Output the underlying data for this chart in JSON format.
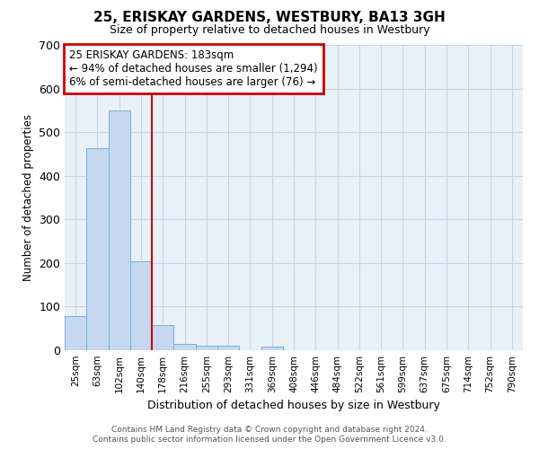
{
  "title": "25, ERISKAY GARDENS, WESTBURY, BA13 3GH",
  "subtitle": "Size of property relative to detached houses in Westbury",
  "xlabel": "Distribution of detached houses by size in Westbury",
  "ylabel": "Number of detached properties",
  "bar_labels": [
    "25sqm",
    "63sqm",
    "102sqm",
    "140sqm",
    "178sqm",
    "216sqm",
    "255sqm",
    "293sqm",
    "331sqm",
    "369sqm",
    "408sqm",
    "446sqm",
    "484sqm",
    "522sqm",
    "561sqm",
    "599sqm",
    "637sqm",
    "675sqm",
    "714sqm",
    "752sqm",
    "790sqm"
  ],
  "bar_heights": [
    78,
    463,
    550,
    204,
    57,
    14,
    10,
    10,
    0,
    8,
    0,
    0,
    0,
    0,
    0,
    0,
    0,
    0,
    0,
    0,
    0
  ],
  "bar_color": "#c5d8f0",
  "bar_edge_color": "#7aafd4",
  "vline_x": 4.0,
  "annotation_line1": "25 ERISKAY GARDENS: 183sqm",
  "annotation_line2": "← 94% of detached houses are smaller (1,294)",
  "annotation_line3": "6% of semi-detached houses are larger (76) →",
  "annotation_box_color": "#cc0000",
  "vline_color": "#cc0000",
  "ylim": [
    0,
    700
  ],
  "yticks": [
    0,
    100,
    200,
    300,
    400,
    500,
    600,
    700
  ],
  "grid_color": "#c8d4e8",
  "bg_color": "#e8f0f8",
  "footer1": "Contains HM Land Registry data © Crown copyright and database right 2024.",
  "footer2": "Contains public sector information licensed under the Open Government Licence v3.0."
}
